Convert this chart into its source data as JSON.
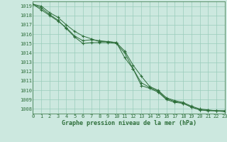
{
  "title": "Graphe pression niveau de la mer (hPa)",
  "background_color": "#cce8df",
  "grid_color": "#99ccbb",
  "line_color": "#2d6e3a",
  "xlim": [
    0,
    23
  ],
  "ylim": [
    1007.5,
    1019.5
  ],
  "yticks": [
    1008,
    1009,
    1010,
    1011,
    1012,
    1013,
    1014,
    1015,
    1016,
    1017,
    1018,
    1019
  ],
  "xticks": [
    0,
    1,
    2,
    3,
    4,
    5,
    6,
    7,
    8,
    9,
    10,
    11,
    12,
    13,
    14,
    15,
    16,
    17,
    18,
    19,
    20,
    21,
    22,
    23
  ],
  "line1": [
    1019.2,
    1019.0,
    1018.3,
    1017.8,
    1017.0,
    1016.3,
    1015.8,
    1015.5,
    1015.2,
    1015.2,
    1015.1,
    1014.2,
    1012.7,
    1011.5,
    1010.4,
    1010.0,
    1009.2,
    1008.9,
    1008.7,
    1008.3,
    1008.0,
    1007.9,
    1007.8,
    1007.8
  ],
  "line2": [
    1019.2,
    1018.6,
    1018.0,
    1017.4,
    1016.7,
    1015.8,
    1015.3,
    1015.4,
    1015.3,
    1015.2,
    1015.1,
    1013.5,
    1012.3,
    1010.8,
    1010.3,
    1009.9,
    1009.1,
    1008.8,
    1008.6,
    1008.2,
    1007.9,
    1007.85,
    1007.8,
    1007.8
  ],
  "line3": [
    1019.2,
    1018.8,
    1018.1,
    1017.5,
    1016.6,
    1015.7,
    1015.0,
    1015.1,
    1015.1,
    1015.1,
    1015.0,
    1014.0,
    1012.3,
    1010.5,
    1010.2,
    1009.8,
    1009.0,
    1008.7,
    1008.6,
    1008.2,
    1007.9,
    1007.8,
    1007.8,
    1007.7
  ],
  "ylabel_fontsize": 5,
  "xlabel_fontsize": 6,
  "tick_fontsize": 5
}
